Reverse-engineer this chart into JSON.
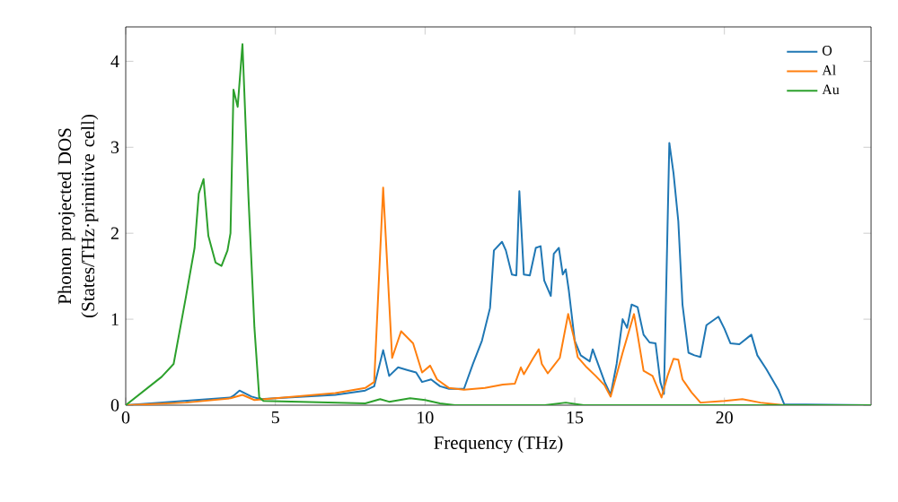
{
  "chart_data": {
    "type": "line",
    "xlabel": "Frequency (THz)",
    "ylabel": "Phonon projected DOS\n(States/THz·primitive cell)",
    "xlim": [
      0,
      24.9
    ],
    "ylim": [
      0,
      4.4
    ],
    "xticks": [
      0,
      5,
      10,
      15,
      20
    ],
    "yticks": [
      0,
      1,
      2,
      3,
      4
    ],
    "legend": "top right",
    "grid": false,
    "series": [
      {
        "name": "O",
        "color": "#1f77b4",
        "x": [
          0,
          2,
          3.5,
          3.6,
          3.8,
          4.2,
          4.5,
          5,
          7,
          8,
          8.3,
          8.6,
          8.8,
          9.1,
          9.4,
          9.7,
          9.9,
          10.2,
          10.5,
          10.8,
          11.3,
          11.6,
          11.9,
          12.17,
          12.3,
          12.57,
          12.7,
          12.9,
          13.05,
          13.15,
          13.3,
          13.5,
          13.7,
          13.86,
          13.98,
          14.2,
          14.3,
          14.47,
          14.6,
          14.7,
          14.8,
          15.0,
          15.2,
          15.5,
          15.6,
          15.8,
          16.0,
          16.2,
          16.4,
          16.6,
          16.75,
          16.9,
          17.1,
          17.3,
          17.5,
          17.7,
          17.86,
          17.98,
          18.16,
          18.3,
          18.46,
          18.6,
          18.8,
          19.0,
          19.2,
          19.4,
          19.8,
          20.0,
          20.2,
          20.5,
          20.9,
          21.1,
          21.4,
          21.8,
          22.0,
          24.9
        ],
        "values": [
          0,
          null,
          0.09,
          0.11,
          0.17,
          0.1,
          0.07,
          0.08,
          0.12,
          0.17,
          0.22,
          0.64,
          0.34,
          0.44,
          0.41,
          0.38,
          0.27,
          0.3,
          0.22,
          0.19,
          0.19,
          0.48,
          0.75,
          1.13,
          1.8,
          1.9,
          1.8,
          1.52,
          1.51,
          2.49,
          1.52,
          1.51,
          1.83,
          1.85,
          1.45,
          1.27,
          1.76,
          1.83,
          1.52,
          1.58,
          1.34,
          0.75,
          0.58,
          0.51,
          0.65,
          0.46,
          0.27,
          0.12,
          0.48,
          1.0,
          0.9,
          1.17,
          1.14,
          0.82,
          0.73,
          0.72,
          0.27,
          0.13,
          3.05,
          2.7,
          2.14,
          1.17,
          0.61,
          0.58,
          0.56,
          0.93,
          1.03,
          0.89,
          0.72,
          0.71,
          0.82,
          0.58,
          0.42,
          0.18,
          0.01,
          0
        ]
      },
      {
        "name": "Al",
        "color": "#ff7f0e",
        "x": [
          0,
          2,
          3.5,
          3.9,
          4.3,
          5,
          7,
          8,
          8.3,
          8.6,
          8.9,
          9.2,
          9.6,
          9.9,
          10.17,
          10.4,
          10.8,
          11.3,
          12.0,
          12.6,
          13.0,
          13.2,
          13.3,
          13.6,
          13.8,
          13.9,
          14.1,
          14.3,
          14.5,
          14.78,
          14.97,
          15.1,
          15.4,
          15.7,
          16.0,
          16.2,
          16.6,
          16.98,
          17.1,
          17.3,
          17.6,
          17.9,
          18.1,
          18.3,
          18.46,
          18.6,
          18.9,
          19.2,
          20.0,
          20.6,
          21.2,
          22.0,
          24.9
        ],
        "values": [
          0,
          0.03,
          0.08,
          0.12,
          0.06,
          0.08,
          0.14,
          0.2,
          0.27,
          2.53,
          0.55,
          0.86,
          0.72,
          0.38,
          0.46,
          0.3,
          0.2,
          0.18,
          0.2,
          0.24,
          0.25,
          0.44,
          0.36,
          0.54,
          0.65,
          0.48,
          0.37,
          0.46,
          0.55,
          1.06,
          0.79,
          0.56,
          0.44,
          0.34,
          0.23,
          0.1,
          0.61,
          1.06,
          0.82,
          0.4,
          0.34,
          0.09,
          0.34,
          0.54,
          0.53,
          0.3,
          0.15,
          0.03,
          0.05,
          0.07,
          0.03,
          0,
          0
        ]
      },
      {
        "name": "Au",
        "color": "#2ca02c",
        "x": [
          0,
          1.2,
          1.6,
          2.0,
          2.3,
          2.44,
          2.6,
          2.76,
          3.0,
          3.2,
          3.4,
          3.5,
          3.6,
          3.74,
          3.9,
          4.1,
          4.3,
          4.46,
          4.6,
          8.0,
          8.5,
          8.8,
          9.5,
          10.0,
          10.5,
          11.0,
          14.0,
          14.7,
          15.3,
          24.9
        ],
        "values": [
          0,
          0.33,
          0.48,
          1.24,
          1.83,
          2.46,
          2.63,
          1.97,
          1.66,
          1.62,
          1.8,
          2.0,
          3.67,
          3.47,
          4.2,
          2.42,
          0.9,
          0.09,
          0.05,
          0.02,
          0.07,
          0.04,
          0.08,
          0.06,
          0.02,
          0,
          0,
          0.03,
          0,
          0
        ]
      }
    ]
  }
}
